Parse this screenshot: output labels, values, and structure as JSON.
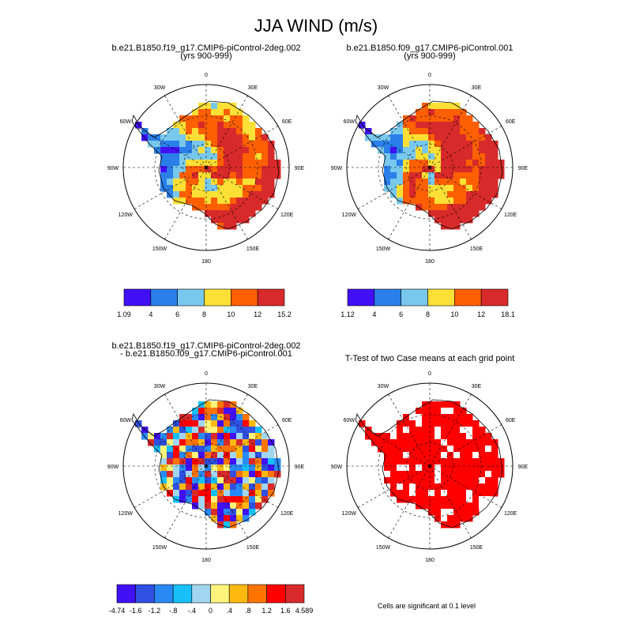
{
  "title": "JJA WIND (m/s)",
  "meridian_labels": [
    "0",
    "30E",
    "60E",
    "90E",
    "120E",
    "150E",
    "180",
    "150W",
    "120W",
    "90W",
    "60W",
    "30W"
  ],
  "panels": [
    {
      "title_line1": "b.e21.B1850.f19_g17.CMIP6-piControl-2deg.002",
      "title_line2": "(yrs 900-999)",
      "colorbar": {
        "labels": [
          "1.09",
          "4",
          "6",
          "8",
          "10",
          "12",
          "15.2"
        ],
        "colors": [
          "#4110f5",
          "#2a7fe8",
          "#78c8ee",
          "#fde035",
          "#fe5f00",
          "#d82a2a"
        ]
      }
    },
    {
      "title_line1": "b.e21.B1850.f09_g17.CMIP6-piControl.001",
      "title_line2": "(yrs 900-999)",
      "colorbar": {
        "labels": [
          "1.12",
          "4",
          "6",
          "8",
          "10",
          "12",
          "18.1"
        ],
        "colors": [
          "#4110f5",
          "#2a7fe8",
          "#78c8ee",
          "#fde035",
          "#fe5f00",
          "#d82a2a"
        ]
      }
    },
    {
      "title_line1": "b.e21.B1850.f19_g17.CMIP6-piControl-2deg.002",
      "title_line2": "- b.e21.B1850.f09_g17.CMIP6-piControl.001",
      "colorbar": {
        "labels": [
          "-4.74",
          "-1.6",
          "-1.2",
          "-.8",
          "-.4",
          "0",
          ".4",
          ".8",
          "1.2",
          "1.6",
          "4.589"
        ],
        "colors": [
          "#4110f5",
          "#2f50e0",
          "#2a8af5",
          "#17c0f8",
          "#a2d6f0",
          "#fef47c",
          "#feb910",
          "#fe7400",
          "#fe0000",
          "#d82a2a"
        ]
      }
    },
    {
      "title_line1": "T-Test of two Case means at each grid point",
      "title_line2": "",
      "footnote": "Cells are significant at 0.1 level"
    }
  ]
}
